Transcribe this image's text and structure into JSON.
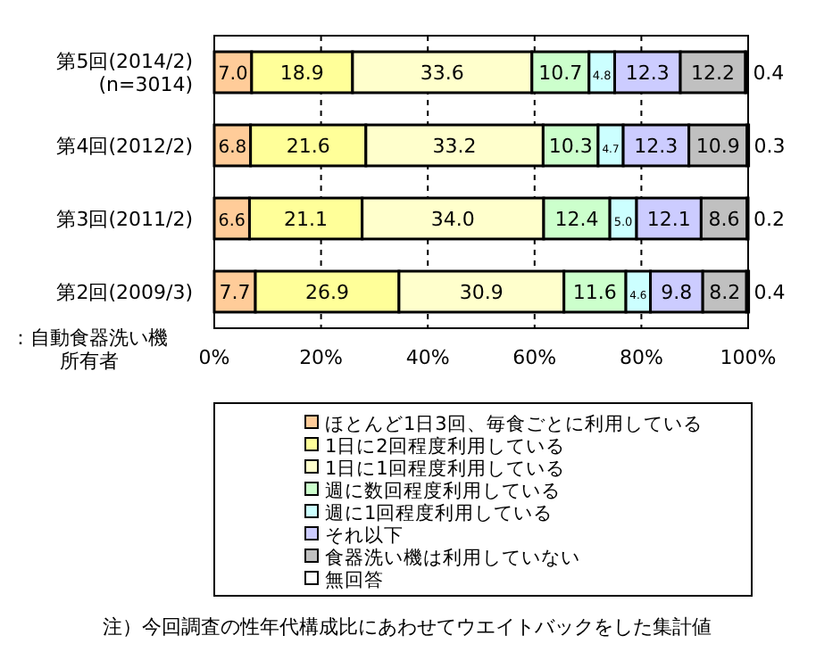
{
  "chart_data": {
    "type": "bar",
    "orientation": "horizontal",
    "stacked": true,
    "categories": [
      "第5回(2014/2)\n(n=3014)",
      "第4回(2012/2)",
      "第3回(2011/2)",
      "第2回(2009/3)"
    ],
    "series": [
      {
        "name": "ほとんど1日3回、毎食ごとに利用している",
        "color": "#ffcc99",
        "values": [
          7.0,
          6.8,
          6.6,
          7.7
        ],
        "value_labels": [
          "7.0",
          "6.8",
          "6.6",
          "7.7"
        ]
      },
      {
        "name": "1日に2回程度利用している",
        "color": "#ffff99",
        "values": [
          18.9,
          21.6,
          21.1,
          26.9
        ],
        "value_labels": [
          "18.9",
          "21.6",
          "21.1",
          "26.9"
        ]
      },
      {
        "name": "1日に1回程度利用している",
        "color": "#ffffcc",
        "values": [
          33.6,
          33.2,
          34.0,
          30.9
        ],
        "value_labels": [
          "33.6",
          "33.2",
          "34.0",
          "30.9"
        ]
      },
      {
        "name": "週に数回程度利用している",
        "color": "#ccffcc",
        "values": [
          10.7,
          10.3,
          12.4,
          11.6
        ],
        "value_labels": [
          "10.7",
          "10.3",
          "12.4",
          "11.6"
        ]
      },
      {
        "name": "週に1回程度利用している",
        "color": "#ccffff",
        "values": [
          4.8,
          4.7,
          5.0,
          4.6
        ],
        "value_labels": [
          "4.8",
          "4.7",
          "5.0",
          "4.6"
        ]
      },
      {
        "name": "それ以下",
        "color": "#ccccff",
        "values": [
          12.3,
          12.3,
          12.1,
          9.8
        ],
        "value_labels": [
          "12.3",
          "12.3",
          "12.1",
          "9.8"
        ]
      },
      {
        "name": "食器洗い機は利用していない",
        "color": "#c0c0c0",
        "values": [
          12.2,
          10.9,
          8.6,
          8.2
        ],
        "value_labels": [
          "12.2",
          "10.9",
          "8.6",
          "8.2"
        ]
      },
      {
        "name": "無回答",
        "color": "#ffffff",
        "values": [
          0.4,
          0.3,
          0.2,
          0.4
        ],
        "value_labels": [
          "0.4",
          "0.3",
          "0.2",
          "0.4"
        ]
      }
    ],
    "xlim": [
      0,
      100
    ],
    "xticks": [
      {
        "value": 0,
        "label": "0%"
      },
      {
        "value": 20,
        "label": "20%"
      },
      {
        "value": 40,
        "label": "40%"
      },
      {
        "value": 60,
        "label": "60%"
      },
      {
        "value": 80,
        "label": "80%"
      },
      {
        "value": 100,
        "label": "100%"
      }
    ],
    "grid": "x",
    "legend": "bottom",
    "annotations": [
      "：自動食器洗い機所有者",
      "注）今回調査の性年代構成比にあわせてウエイトバックをした集計値"
    ]
  }
}
